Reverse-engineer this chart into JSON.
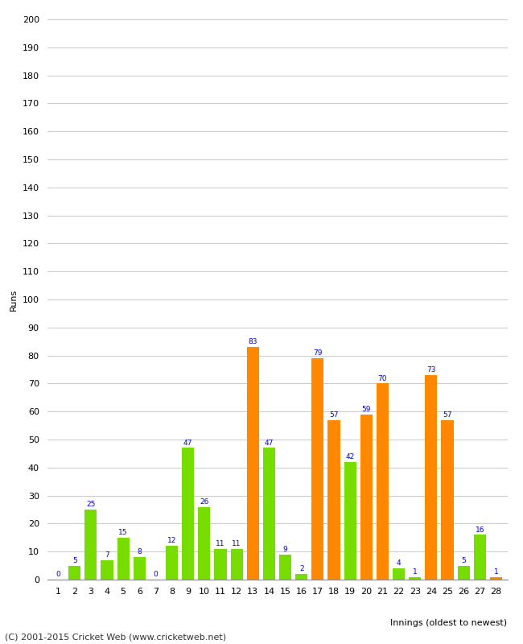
{
  "innings": [
    1,
    2,
    3,
    4,
    5,
    6,
    7,
    8,
    9,
    10,
    11,
    12,
    13,
    14,
    15,
    16,
    17,
    18,
    19,
    20,
    21,
    22,
    23,
    24,
    25,
    26,
    27,
    28
  ],
  "values": [
    0,
    5,
    25,
    7,
    15,
    8,
    0,
    12,
    47,
    26,
    11,
    11,
    83,
    47,
    9,
    2,
    79,
    57,
    42,
    59,
    70,
    4,
    1,
    73,
    57,
    5,
    16,
    1
  ],
  "colors": [
    "#77dd00",
    "#77dd00",
    "#77dd00",
    "#77dd00",
    "#77dd00",
    "#77dd00",
    "#77dd00",
    "#77dd00",
    "#77dd00",
    "#77dd00",
    "#77dd00",
    "#77dd00",
    "#ff8800",
    "#77dd00",
    "#77dd00",
    "#77dd00",
    "#ff8800",
    "#ff8800",
    "#77dd00",
    "#ff8800",
    "#ff8800",
    "#77dd00",
    "#77dd00",
    "#ff8800",
    "#ff8800",
    "#77dd00",
    "#77dd00",
    "#ff8800"
  ],
  "ylabel": "Runs",
  "xlabel": "Innings (oldest to newest)",
  "ylim": [
    0,
    200
  ],
  "yticks": [
    0,
    10,
    20,
    30,
    40,
    50,
    60,
    70,
    80,
    90,
    100,
    110,
    120,
    130,
    140,
    150,
    160,
    170,
    180,
    190,
    200
  ],
  "label_color": "#0000cc",
  "label_fontsize": 6.5,
  "bar_width": 0.75,
  "background_color": "#ffffff",
  "grid_color": "#cccccc",
  "footer": "(C) 2001-2015 Cricket Web (www.cricketweb.net)",
  "tick_fontsize": 8,
  "ylabel_fontsize": 8,
  "xlabel_fontsize": 8,
  "footer_fontsize": 8
}
